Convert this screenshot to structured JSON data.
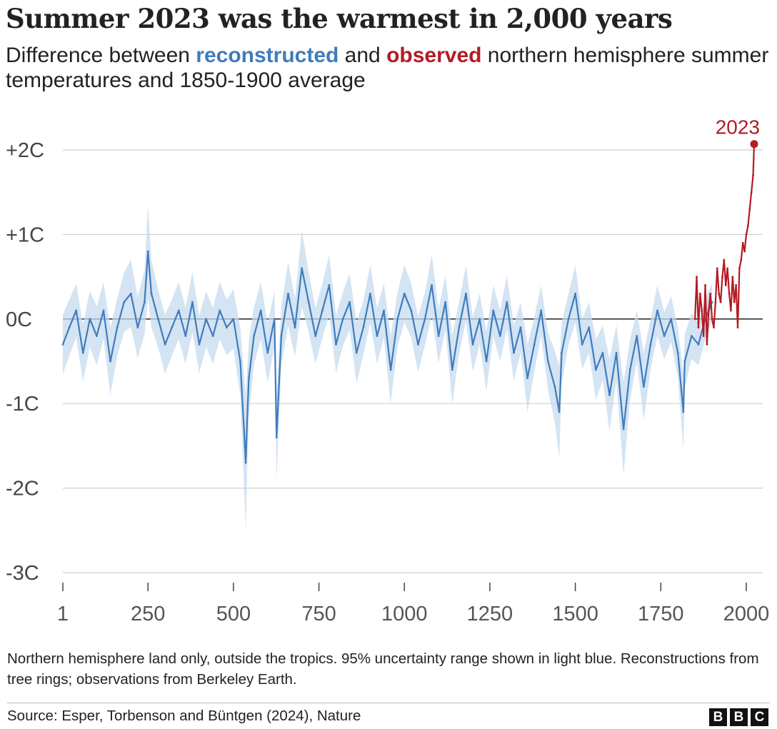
{
  "header": {
    "title": "Summer 2023 was the warmest in 2,000 years",
    "subtitle_before": "Difference between ",
    "subtitle_keyword_1": "reconstructed",
    "subtitle_middle": " and ",
    "subtitle_keyword_2": "observed",
    "subtitle_after": " northern hemisphere summer temperatures and 1850-1900 average"
  },
  "colors": {
    "reconstructed": "#3f7cbd",
    "uncertainty": "#c6dbef",
    "observed": "#b41b23",
    "baseline": "#222222",
    "grid": "#d0d0d0"
  },
  "chart_data": {
    "type": "line",
    "x_unit": "year",
    "xlim": [
      1,
      2023
    ],
    "ylim": [
      -3,
      2
    ],
    "x_ticks": [
      1,
      250,
      500,
      750,
      1000,
      1250,
      1500,
      1750,
      2000
    ],
    "y_ticks": [
      {
        "value": 2,
        "label": "+2C"
      },
      {
        "value": 1,
        "label": "+1C"
      },
      {
        "value": 0,
        "label": "0C"
      },
      {
        "value": -1,
        "label": "-1C"
      },
      {
        "value": -2,
        "label": "-2C"
      },
      {
        "value": -3,
        "label": "-3C"
      }
    ],
    "grid": true,
    "series": [
      {
        "key": "reconstructed",
        "color": "#3f7cbd",
        "x": [
          1,
          20,
          40,
          60,
          80,
          100,
          120,
          140,
          160,
          180,
          200,
          220,
          240,
          250,
          260,
          280,
          300,
          320,
          340,
          360,
          380,
          400,
          420,
          440,
          460,
          480,
          500,
          520,
          536,
          540,
          545,
          560,
          580,
          600,
          620,
          626,
          640,
          660,
          680,
          700,
          720,
          740,
          760,
          780,
          800,
          820,
          840,
          860,
          880,
          900,
          920,
          940,
          960,
          980,
          1000,
          1020,
          1040,
          1060,
          1080,
          1100,
          1120,
          1140,
          1160,
          1180,
          1200,
          1220,
          1240,
          1260,
          1280,
          1300,
          1320,
          1340,
          1360,
          1380,
          1400,
          1420,
          1440,
          1453,
          1460,
          1480,
          1500,
          1520,
          1540,
          1560,
          1580,
          1600,
          1620,
          1641,
          1660,
          1680,
          1700,
          1720,
          1740,
          1760,
          1780,
          1800,
          1816,
          1820,
          1840,
          1860,
          1880,
          1900
        ],
        "y": [
          -0.3,
          -0.1,
          0.1,
          -0.4,
          0.0,
          -0.2,
          0.1,
          -0.5,
          -0.1,
          0.2,
          0.3,
          -0.1,
          0.2,
          0.8,
          0.3,
          0.0,
          -0.3,
          -0.1,
          0.1,
          -0.2,
          0.2,
          -0.3,
          0.0,
          -0.2,
          0.1,
          -0.1,
          0.0,
          -0.5,
          -1.7,
          -1.2,
          -0.7,
          -0.2,
          0.1,
          -0.4,
          0.0,
          -1.4,
          -0.2,
          0.3,
          -0.1,
          0.6,
          0.2,
          -0.2,
          0.1,
          0.4,
          -0.3,
          0.0,
          0.2,
          -0.4,
          -0.1,
          0.3,
          -0.2,
          0.1,
          -0.6,
          0.0,
          0.3,
          0.1,
          -0.3,
          0.0,
          0.4,
          -0.2,
          0.2,
          -0.6,
          -0.1,
          0.3,
          -0.3,
          0.0,
          -0.5,
          0.1,
          -0.2,
          0.2,
          -0.4,
          -0.1,
          -0.7,
          -0.3,
          0.1,
          -0.5,
          -0.8,
          -1.1,
          -0.4,
          0.0,
          0.3,
          -0.3,
          -0.1,
          -0.6,
          -0.4,
          -0.9,
          -0.4,
          -1.3,
          -0.6,
          -0.2,
          -0.8,
          -0.3,
          0.1,
          -0.2,
          0.0,
          -0.4,
          -1.1,
          -0.5,
          -0.2,
          -0.3,
          0.0,
          0.2
        ],
        "band": [
          0.35,
          0.33,
          0.32,
          0.34,
          0.33,
          0.35,
          0.33,
          0.4,
          0.34,
          0.35,
          0.4,
          0.36,
          0.38,
          0.55,
          0.4,
          0.34,
          0.35,
          0.33,
          0.34,
          0.33,
          0.36,
          0.34,
          0.33,
          0.33,
          0.34,
          0.33,
          0.35,
          0.4,
          0.8,
          0.6,
          0.45,
          0.34,
          0.34,
          0.35,
          0.33,
          0.5,
          0.35,
          0.38,
          0.34,
          0.45,
          0.36,
          0.33,
          0.32,
          0.36,
          0.34,
          0.32,
          0.33,
          0.36,
          0.32,
          0.34,
          0.33,
          0.32,
          0.4,
          0.32,
          0.34,
          0.32,
          0.33,
          0.31,
          0.36,
          0.32,
          0.32,
          0.4,
          0.31,
          0.33,
          0.32,
          0.3,
          0.35,
          0.3,
          0.3,
          0.32,
          0.33,
          0.3,
          0.4,
          0.32,
          0.3,
          0.34,
          0.42,
          0.55,
          0.36,
          0.3,
          0.34,
          0.3,
          0.3,
          0.36,
          0.32,
          0.42,
          0.33,
          0.55,
          0.36,
          0.3,
          0.4,
          0.3,
          0.3,
          0.28,
          0.27,
          0.3,
          0.45,
          0.32,
          0.27,
          0.25,
          0.24,
          0.22
        ]
      },
      {
        "key": "observed",
        "color": "#b41b23",
        "x": [
          1850,
          1855,
          1860,
          1865,
          1870,
          1875,
          1880,
          1885,
          1890,
          1895,
          1900,
          1905,
          1910,
          1915,
          1920,
          1925,
          1930,
          1935,
          1940,
          1945,
          1950,
          1955,
          1960,
          1965,
          1970,
          1975,
          1980,
          1985,
          1990,
          1995,
          2000,
          2005,
          2010,
          2015,
          2020,
          2023
        ],
        "y": [
          0.0,
          0.5,
          -0.1,
          0.3,
          0.1,
          -0.2,
          0.4,
          -0.3,
          0.1,
          0.3,
          0.0,
          -0.1,
          0.2,
          0.6,
          0.3,
          0.2,
          0.5,
          0.7,
          0.4,
          0.6,
          0.3,
          0.1,
          0.5,
          0.2,
          0.4,
          -0.1,
          0.6,
          0.7,
          0.9,
          0.8,
          1.0,
          1.1,
          1.3,
          1.5,
          1.7,
          2.07
        ]
      }
    ],
    "annotation": {
      "label": "2023",
      "x": 2023,
      "y": 2.07
    }
  },
  "footer": {
    "note": "Northern hemisphere land only, outside the tropics. 95% uncertainty range shown in light blue. Reconstructions from tree rings; observations from Berkeley Earth.",
    "source": "Source: Esper, Torbenson and Büntgen (2024), Nature",
    "logo_letters": [
      "B",
      "B",
      "C"
    ]
  }
}
